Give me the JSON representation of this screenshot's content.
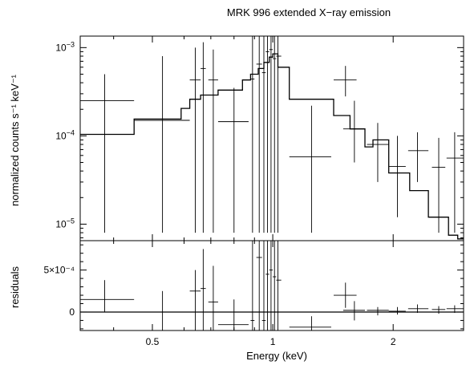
{
  "chart_data": [
    {
      "type": "scatter",
      "title": "MRK 996 extended X−ray emission",
      "xlabel": "Energy (keV)",
      "ylabel": "normalized counts s⁻¹ keV⁻¹",
      "xscale": "log",
      "yscale": "log",
      "xlim": [
        0.33,
        3.0
      ],
      "ylim": [
        6.5e-06,
        0.00135
      ],
      "yticks": [
        {
          "value": 0.001,
          "base": "10",
          "exp": "−3"
        },
        {
          "value": 0.0001,
          "base": "10",
          "exp": "−4"
        },
        {
          "value": 1e-05,
          "base": "10",
          "exp": "−5"
        }
      ],
      "points": [
        {
          "x": 0.38,
          "xlo": 0.33,
          "xhi": 0.45,
          "y": 0.00025,
          "ylo": 8e-06,
          "yhi": 0.0005
        },
        {
          "x": 0.53,
          "xlo": 0.45,
          "xhi": 0.62,
          "y": 0.00015,
          "ylo": 8e-06,
          "yhi": 0.0008
        },
        {
          "x": 0.64,
          "xlo": 0.62,
          "xhi": 0.66,
          "y": 0.00043,
          "ylo": 8e-06,
          "yhi": 0.001
        },
        {
          "x": 0.67,
          "xlo": 0.66,
          "xhi": 0.68,
          "y": 0.00058,
          "ylo": 8e-06,
          "yhi": 0.00115
        },
        {
          "x": 0.71,
          "xlo": 0.69,
          "xhi": 0.73,
          "y": 0.00043,
          "ylo": 8e-06,
          "yhi": 0.00095
        },
        {
          "x": 0.8,
          "xlo": 0.73,
          "xhi": 0.87,
          "y": 0.000145,
          "ylo": 8e-06,
          "yhi": 0.00035
        },
        {
          "x": 0.89,
          "xlo": 0.88,
          "xhi": 0.9,
          "y": 0.00044,
          "ylo": 8e-06,
          "yhi": 0.00135
        },
        {
          "x": 0.925,
          "xlo": 0.91,
          "xhi": 0.94,
          "y": 0.00065,
          "ylo": 8e-06,
          "yhi": 0.00135
        },
        {
          "x": 0.95,
          "xlo": 0.94,
          "xhi": 0.96,
          "y": 0.00052,
          "ylo": 8e-06,
          "yhi": 0.00135
        },
        {
          "x": 0.97,
          "xlo": 0.96,
          "xhi": 0.98,
          "y": 0.0009,
          "ylo": 8e-06,
          "yhi": 0.00135
        },
        {
          "x": 0.99,
          "xlo": 0.98,
          "xhi": 1.0,
          "y": 0.00095,
          "ylo": 8e-06,
          "yhi": 0.00135
        },
        {
          "x": 1.01,
          "xlo": 1.0,
          "xhi": 1.02,
          "y": 0.00075,
          "ylo": 8e-06,
          "yhi": 0.00135
        },
        {
          "x": 1.03,
          "xlo": 1.02,
          "xhi": 1.05,
          "y": 0.0008,
          "ylo": 8e-06,
          "yhi": 0.00135
        },
        {
          "x": 1.25,
          "xlo": 1.1,
          "xhi": 1.4,
          "y": 5.8e-05,
          "ylo": 8e-06,
          "yhi": 0.00022
        },
        {
          "x": 1.52,
          "xlo": 1.42,
          "xhi": 1.62,
          "y": 0.00043,
          "ylo": 0.00028,
          "yhi": 0.00062
        },
        {
          "x": 1.6,
          "xlo": 1.5,
          "xhi": 1.7,
          "y": 0.00012,
          "ylo": 5e-05,
          "yhi": 0.00025
        },
        {
          "x": 1.83,
          "xlo": 1.72,
          "xhi": 1.95,
          "y": 8e-05,
          "ylo": 3e-05,
          "yhi": 0.00014
        },
        {
          "x": 2.05,
          "xlo": 1.95,
          "xhi": 2.15,
          "y": 4.5e-05,
          "ylo": 1.2e-05,
          "yhi": 0.0001
        },
        {
          "x": 2.3,
          "xlo": 2.18,
          "xhi": 2.45,
          "y": 6.8e-05,
          "ylo": 3e-05,
          "yhi": 0.00011
        },
        {
          "x": 2.6,
          "xlo": 2.5,
          "xhi": 2.7,
          "y": 4.4e-05,
          "ylo": 8e-06,
          "yhi": 9.5e-05
        },
        {
          "x": 2.85,
          "xlo": 2.72,
          "xhi": 3.0,
          "y": 5.6e-05,
          "ylo": 8e-06,
          "yhi": 0.00011
        }
      ],
      "model_steps": [
        {
          "xlo": 0.33,
          "xhi": 0.45,
          "y": 0.000104
        },
        {
          "xlo": 0.45,
          "xhi": 0.59,
          "y": 0.000155
        },
        {
          "xlo": 0.59,
          "xhi": 0.62,
          "y": 0.000205
        },
        {
          "xlo": 0.62,
          "xhi": 0.66,
          "y": 0.00026
        },
        {
          "xlo": 0.66,
          "xhi": 0.73,
          "y": 0.00029
        },
        {
          "xlo": 0.73,
          "xhi": 0.84,
          "y": 0.00033
        },
        {
          "xlo": 0.84,
          "xhi": 0.88,
          "y": 0.00043
        },
        {
          "xlo": 0.88,
          "xhi": 0.92,
          "y": 0.0005
        },
        {
          "xlo": 0.92,
          "xhi": 0.95,
          "y": 0.00058
        },
        {
          "xlo": 0.95,
          "xhi": 0.98,
          "y": 0.00068
        },
        {
          "xlo": 0.98,
          "xhi": 1.0,
          "y": 0.00078
        },
        {
          "xlo": 1.0,
          "xhi": 1.03,
          "y": 0.00085
        },
        {
          "xlo": 1.03,
          "xhi": 1.1,
          "y": 0.0006
        },
        {
          "xlo": 1.1,
          "xhi": 1.42,
          "y": 0.00026
        },
        {
          "xlo": 1.42,
          "xhi": 1.56,
          "y": 0.00017
        },
        {
          "xlo": 1.56,
          "xhi": 1.7,
          "y": 0.00012
        },
        {
          "xlo": 1.7,
          "xhi": 1.78,
          "y": 7.5e-05
        },
        {
          "xlo": 1.78,
          "xhi": 1.95,
          "y": 9e-05
        },
        {
          "xlo": 1.95,
          "xhi": 2.2,
          "y": 3.8e-05
        },
        {
          "xlo": 2.2,
          "xhi": 2.45,
          "y": 2.4e-05
        },
        {
          "xlo": 2.45,
          "xhi": 2.75,
          "y": 1.2e-05
        },
        {
          "xlo": 2.75,
          "xhi": 2.9,
          "y": 7.5e-06
        },
        {
          "xlo": 2.9,
          "xhi": 3.0,
          "y": 6.8e-06
        }
      ]
    },
    {
      "type": "scatter",
      "xlabel": "Energy (keV)",
      "ylabel": "residuals",
      "xscale": "log",
      "yscale": "linear",
      "xlim": [
        0.33,
        3.0
      ],
      "ylim": [
        -0.00022,
        0.00085
      ],
      "yticks": [
        {
          "value": 0.0005,
          "label": "5×10⁻⁴"
        },
        {
          "value": 0,
          "label": "0"
        }
      ],
      "xticks": [
        {
          "value": 0.5,
          "label": "0.5"
        },
        {
          "value": 1,
          "label": "1"
        },
        {
          "value": 2,
          "label": "2"
        }
      ],
      "zero_line": true,
      "points": [
        {
          "x": 0.38,
          "xlo": 0.33,
          "xhi": 0.45,
          "y": 0.00015,
          "ylo": 0.0,
          "yhi": 0.00038
        },
        {
          "x": 0.53,
          "xlo": 0.45,
          "xhi": 0.62,
          "y": 0.0,
          "ylo": -0.00022,
          "yhi": 0.00025
        },
        {
          "x": 0.64,
          "xlo": 0.62,
          "xhi": 0.66,
          "y": 0.00025,
          "ylo": -0.00022,
          "yhi": 0.0005
        },
        {
          "x": 0.67,
          "xlo": 0.66,
          "xhi": 0.68,
          "y": 0.00028,
          "ylo": -0.00022,
          "yhi": 0.00075
        },
        {
          "x": 0.71,
          "xlo": 0.69,
          "xhi": 0.73,
          "y": 0.00012,
          "ylo": -0.00022,
          "yhi": 0.00055
        },
        {
          "x": 0.8,
          "xlo": 0.73,
          "xhi": 0.87,
          "y": -0.00015,
          "ylo": -0.00022,
          "yhi": 0.00015
        },
        {
          "x": 0.89,
          "xlo": 0.88,
          "xhi": 0.9,
          "y": -0.0001,
          "ylo": -0.00022,
          "yhi": 0.00085
        },
        {
          "x": 0.925,
          "xlo": 0.91,
          "xhi": 0.94,
          "y": 0.00065,
          "ylo": -0.00022,
          "yhi": 0.00085
        },
        {
          "x": 0.95,
          "xlo": 0.94,
          "xhi": 0.96,
          "y": -0.0001,
          "ylo": -0.00022,
          "yhi": 0.00085
        },
        {
          "x": 0.97,
          "xlo": 0.96,
          "xhi": 0.98,
          "y": 0.00045,
          "ylo": -0.00022,
          "yhi": 0.00085
        },
        {
          "x": 0.99,
          "xlo": 0.98,
          "xhi": 1.0,
          "y": 0.0005,
          "ylo": -0.00022,
          "yhi": 0.00085
        },
        {
          "x": 1.01,
          "xlo": 1.0,
          "xhi": 1.02,
          "y": 0.00042,
          "ylo": -0.00022,
          "yhi": 0.00085
        },
        {
          "x": 1.03,
          "xlo": 1.02,
          "xhi": 1.05,
          "y": 0.00038,
          "ylo": -0.00022,
          "yhi": 0.00085
        },
        {
          "x": 1.25,
          "xlo": 1.1,
          "xhi": 1.4,
          "y": -0.00018,
          "ylo": -0.00022,
          "yhi": -5e-05
        },
        {
          "x": 1.52,
          "xlo": 1.42,
          "xhi": 1.62,
          "y": 0.0002,
          "ylo": 5e-05,
          "yhi": 0.00035
        },
        {
          "x": 1.6,
          "xlo": 1.5,
          "xhi": 1.7,
          "y": 2e-05,
          "ylo": -0.0001,
          "yhi": 0.00013
        },
        {
          "x": 1.83,
          "xlo": 1.72,
          "xhi": 1.95,
          "y": 2e-05,
          "ylo": -4e-05,
          "yhi": 6e-05
        },
        {
          "x": 2.05,
          "xlo": 1.95,
          "xhi": 2.15,
          "y": 1e-05,
          "ylo": -3e-05,
          "yhi": 6e-05
        },
        {
          "x": 2.3,
          "xlo": 2.18,
          "xhi": 2.45,
          "y": 4e-05,
          "ylo": -1e-05,
          "yhi": 9e-05
        },
        {
          "x": 2.6,
          "xlo": 2.5,
          "xhi": 2.7,
          "y": 3e-05,
          "ylo": -2e-05,
          "yhi": 7e-05
        },
        {
          "x": 2.85,
          "xlo": 2.72,
          "xhi": 3.0,
          "y": 4e-05,
          "ylo": -1e-05,
          "yhi": 8e-05
        }
      ],
      "model_steps": []
    }
  ]
}
